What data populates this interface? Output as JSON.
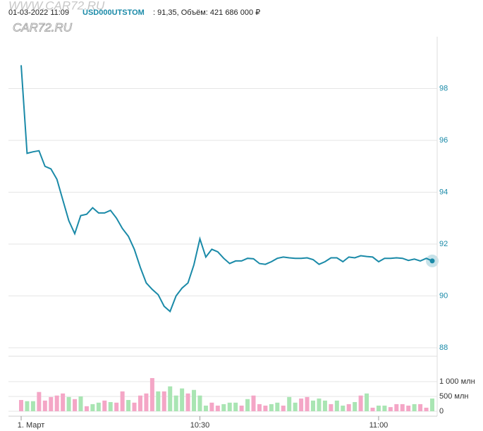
{
  "header": {
    "date": "01-03-2022 11:09",
    "ticker": "USD000UTSTOM",
    "details": ": 91,35, Объём: 421 686 000 ₽"
  },
  "watermark": [
    "WWW.CAR72.RU",
    "CAR72.RU"
  ],
  "chart_data": [
    {
      "type": "line",
      "categories": [
        "1. Март",
        null,
        null,
        null,
        null,
        null,
        null,
        null,
        null,
        null,
        null,
        null,
        null,
        null,
        null,
        null,
        null,
        null,
        null,
        null,
        null,
        null,
        null,
        null,
        null,
        null,
        null,
        null,
        null,
        null,
        "10:30",
        null,
        null,
        null,
        null,
        null,
        null,
        null,
        null,
        null,
        null,
        null,
        null,
        null,
        null,
        null,
        null,
        null,
        null,
        null,
        null,
        null,
        null,
        null,
        null,
        null,
        null,
        null,
        null,
        null,
        "11:00",
        null,
        null,
        null,
        null,
        null,
        null,
        null,
        null,
        null
      ],
      "series": [
        {
          "name": "USD000UTSTOM",
          "color": "#1a8aa8",
          "values": [
            98.9,
            95.5,
            95.56,
            95.6,
            95.0,
            94.9,
            94.5,
            93.7,
            92.9,
            92.4,
            93.1,
            93.15,
            93.4,
            93.2,
            93.2,
            93.3,
            93.0,
            92.6,
            92.3,
            91.8,
            91.1,
            90.5,
            90.25,
            90.05,
            89.6,
            89.4,
            90.0,
            90.3,
            90.5,
            91.2,
            92.2,
            91.5,
            91.8,
            91.7,
            91.45,
            91.25,
            91.35,
            91.35,
            91.45,
            91.43,
            91.25,
            91.22,
            91.32,
            91.45,
            91.5,
            91.47,
            91.45,
            91.45,
            91.47,
            91.4,
            91.22,
            91.32,
            91.47,
            91.47,
            91.32,
            91.5,
            91.47,
            91.55,
            91.52,
            91.5,
            91.32,
            91.45,
            91.45,
            91.47,
            91.45,
            91.37,
            91.42,
            91.35,
            91.45,
            91.35
          ]
        }
      ],
      "ylim": [
        88,
        100
      ],
      "yticks": [
        88,
        90,
        92,
        94,
        96,
        98
      ],
      "grid": true
    },
    {
      "type": "bar",
      "values": [
        380,
        340,
        340,
        650,
        360,
        480,
        530,
        600,
        480,
        410,
        500,
        170,
        240,
        290,
        360,
        310,
        290,
        670,
        380,
        290,
        530,
        600,
        1120,
        670,
        670,
        840,
        530,
        770,
        600,
        720,
        530,
        190,
        290,
        190,
        240,
        290,
        290,
        190,
        410,
        530,
        240,
        190,
        240,
        290,
        190,
        480,
        290,
        430,
        480,
        360,
        430,
        360,
        240,
        360,
        190,
        240,
        310,
        530,
        600,
        120,
        190,
        190,
        140,
        240,
        240,
        190,
        240,
        240,
        120,
        430
      ],
      "colors": [
        "#f4a6c6",
        "#a9e5b3",
        "#a9e5b3",
        "#f4a6c6",
        "#f4a6c6",
        "#f4a6c6",
        "#f4a6c6",
        "#f4a6c6",
        "#a9e5b3",
        "#f4a6c6",
        "#a9e5b3",
        "#f4a6c6",
        "#a9e5b3",
        "#a9e5b3",
        "#f4a6c6",
        "#a9e5b3",
        "#f4a6c6",
        "#f4a6c6",
        "#a9e5b3",
        "#f4a6c6",
        "#f4a6c6",
        "#f4a6c6",
        "#f4a6c6",
        "#a9e5b3",
        "#f4a6c6",
        "#a9e5b3",
        "#a9e5b3",
        "#a9e5b3",
        "#f4a6c6",
        "#a9e5b3",
        "#a9e5b3",
        "#a9e5b3",
        "#f4a6c6",
        "#f4a6c6",
        "#a9e5b3",
        "#a9e5b3",
        "#a9e5b3",
        "#f4a6c6",
        "#a9e5b3",
        "#f4a6c6",
        "#f4a6c6",
        "#f4a6c6",
        "#a9e5b3",
        "#a9e5b3",
        "#f4a6c6",
        "#a9e5b3",
        "#a9e5b3",
        "#f4a6c6",
        "#f4a6c6",
        "#a9e5b3",
        "#a9e5b3",
        "#a9e5b3",
        "#f4a6c6",
        "#a9e5b3",
        "#a9e5b3",
        "#f4a6c6",
        "#a9e5b3",
        "#f4a6c6",
        "#a9e5b3",
        "#f4a6c6",
        "#a9e5b3",
        "#a9e5b3",
        "#f4a6c6",
        "#f4a6c6",
        "#f4a6c6",
        "#f4a6c6",
        "#a9e5b3",
        "#f4a6c6",
        "#f4a6c6",
        "#a9e5b3"
      ],
      "ylim": [
        0,
        1500
      ],
      "yticks": [
        0,
        {
          "value": 500,
          "label": "500 млн"
        },
        {
          "value": 1000,
          "label": "1 000 млн"
        }
      ],
      "grid": true
    }
  ]
}
